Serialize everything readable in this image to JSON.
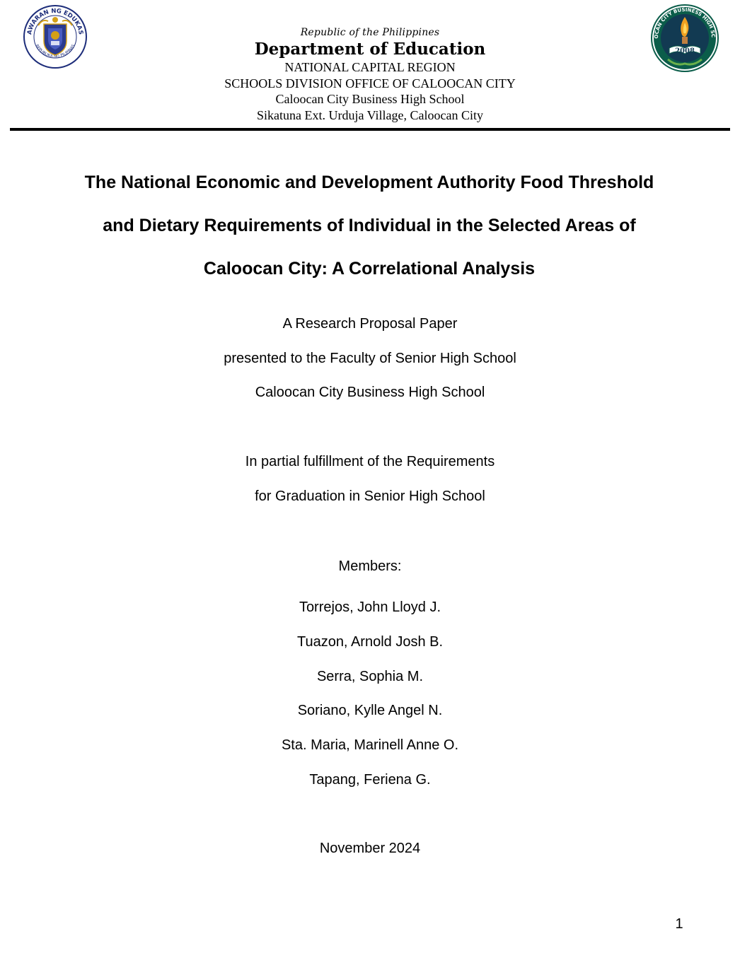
{
  "header": {
    "left_seal": {
      "icon": "deped-seal-icon",
      "ring_text": "KAGAWARAN NG EDUKASYON",
      "bottom_text": "REPUBLIKA NG PILIPINAS",
      "colors": {
        "shield": "#2a3a8f",
        "ring": "#ffffff",
        "accent": "#d4a017"
      }
    },
    "right_seal": {
      "icon": "school-seal-icon",
      "ring_text": "CALOOCAN CITY BUSINESS HIGH SCHOOL",
      "year": "2008",
      "colors": {
        "ring": "#0b5d4a",
        "center": "#123a52",
        "flame": "#f0a020"
      }
    },
    "republic": "Republic of the Philippines",
    "department": "Department of Education",
    "lines": [
      "NATIONAL CAPITAL REGION",
      "SCHOOLS DIVISION OFFICE OF CALOOCAN CITY",
      "Caloocan City Business High School",
      "Sikatuna Ext. Urduja Village, Caloocan City"
    ]
  },
  "title": {
    "lines": [
      "The National Economic and Development Authority Food Threshold",
      "and Dietary Requirements of Individual in the Selected Areas of",
      "Caloocan City: A Correlational Analysis"
    ]
  },
  "proposal": {
    "lines": [
      "A Research Proposal Paper",
      "presented to the Faculty of Senior High School",
      "Caloocan City Business High School"
    ]
  },
  "fulfillment": {
    "lines": [
      "In partial fulfillment of the Requirements",
      "for Graduation in Senior High School"
    ]
  },
  "members": {
    "label": "Members:",
    "names": [
      "Torrejos, John Lloyd J.",
      "Tuazon, Arnold Josh B.",
      "Serra, Sophia M.",
      "Soriano, Kylle Angel N.",
      "Sta. Maria, Marinell Anne O.",
      "Tapang, Feriena G."
    ]
  },
  "date": "November 2024",
  "page_number": "1"
}
